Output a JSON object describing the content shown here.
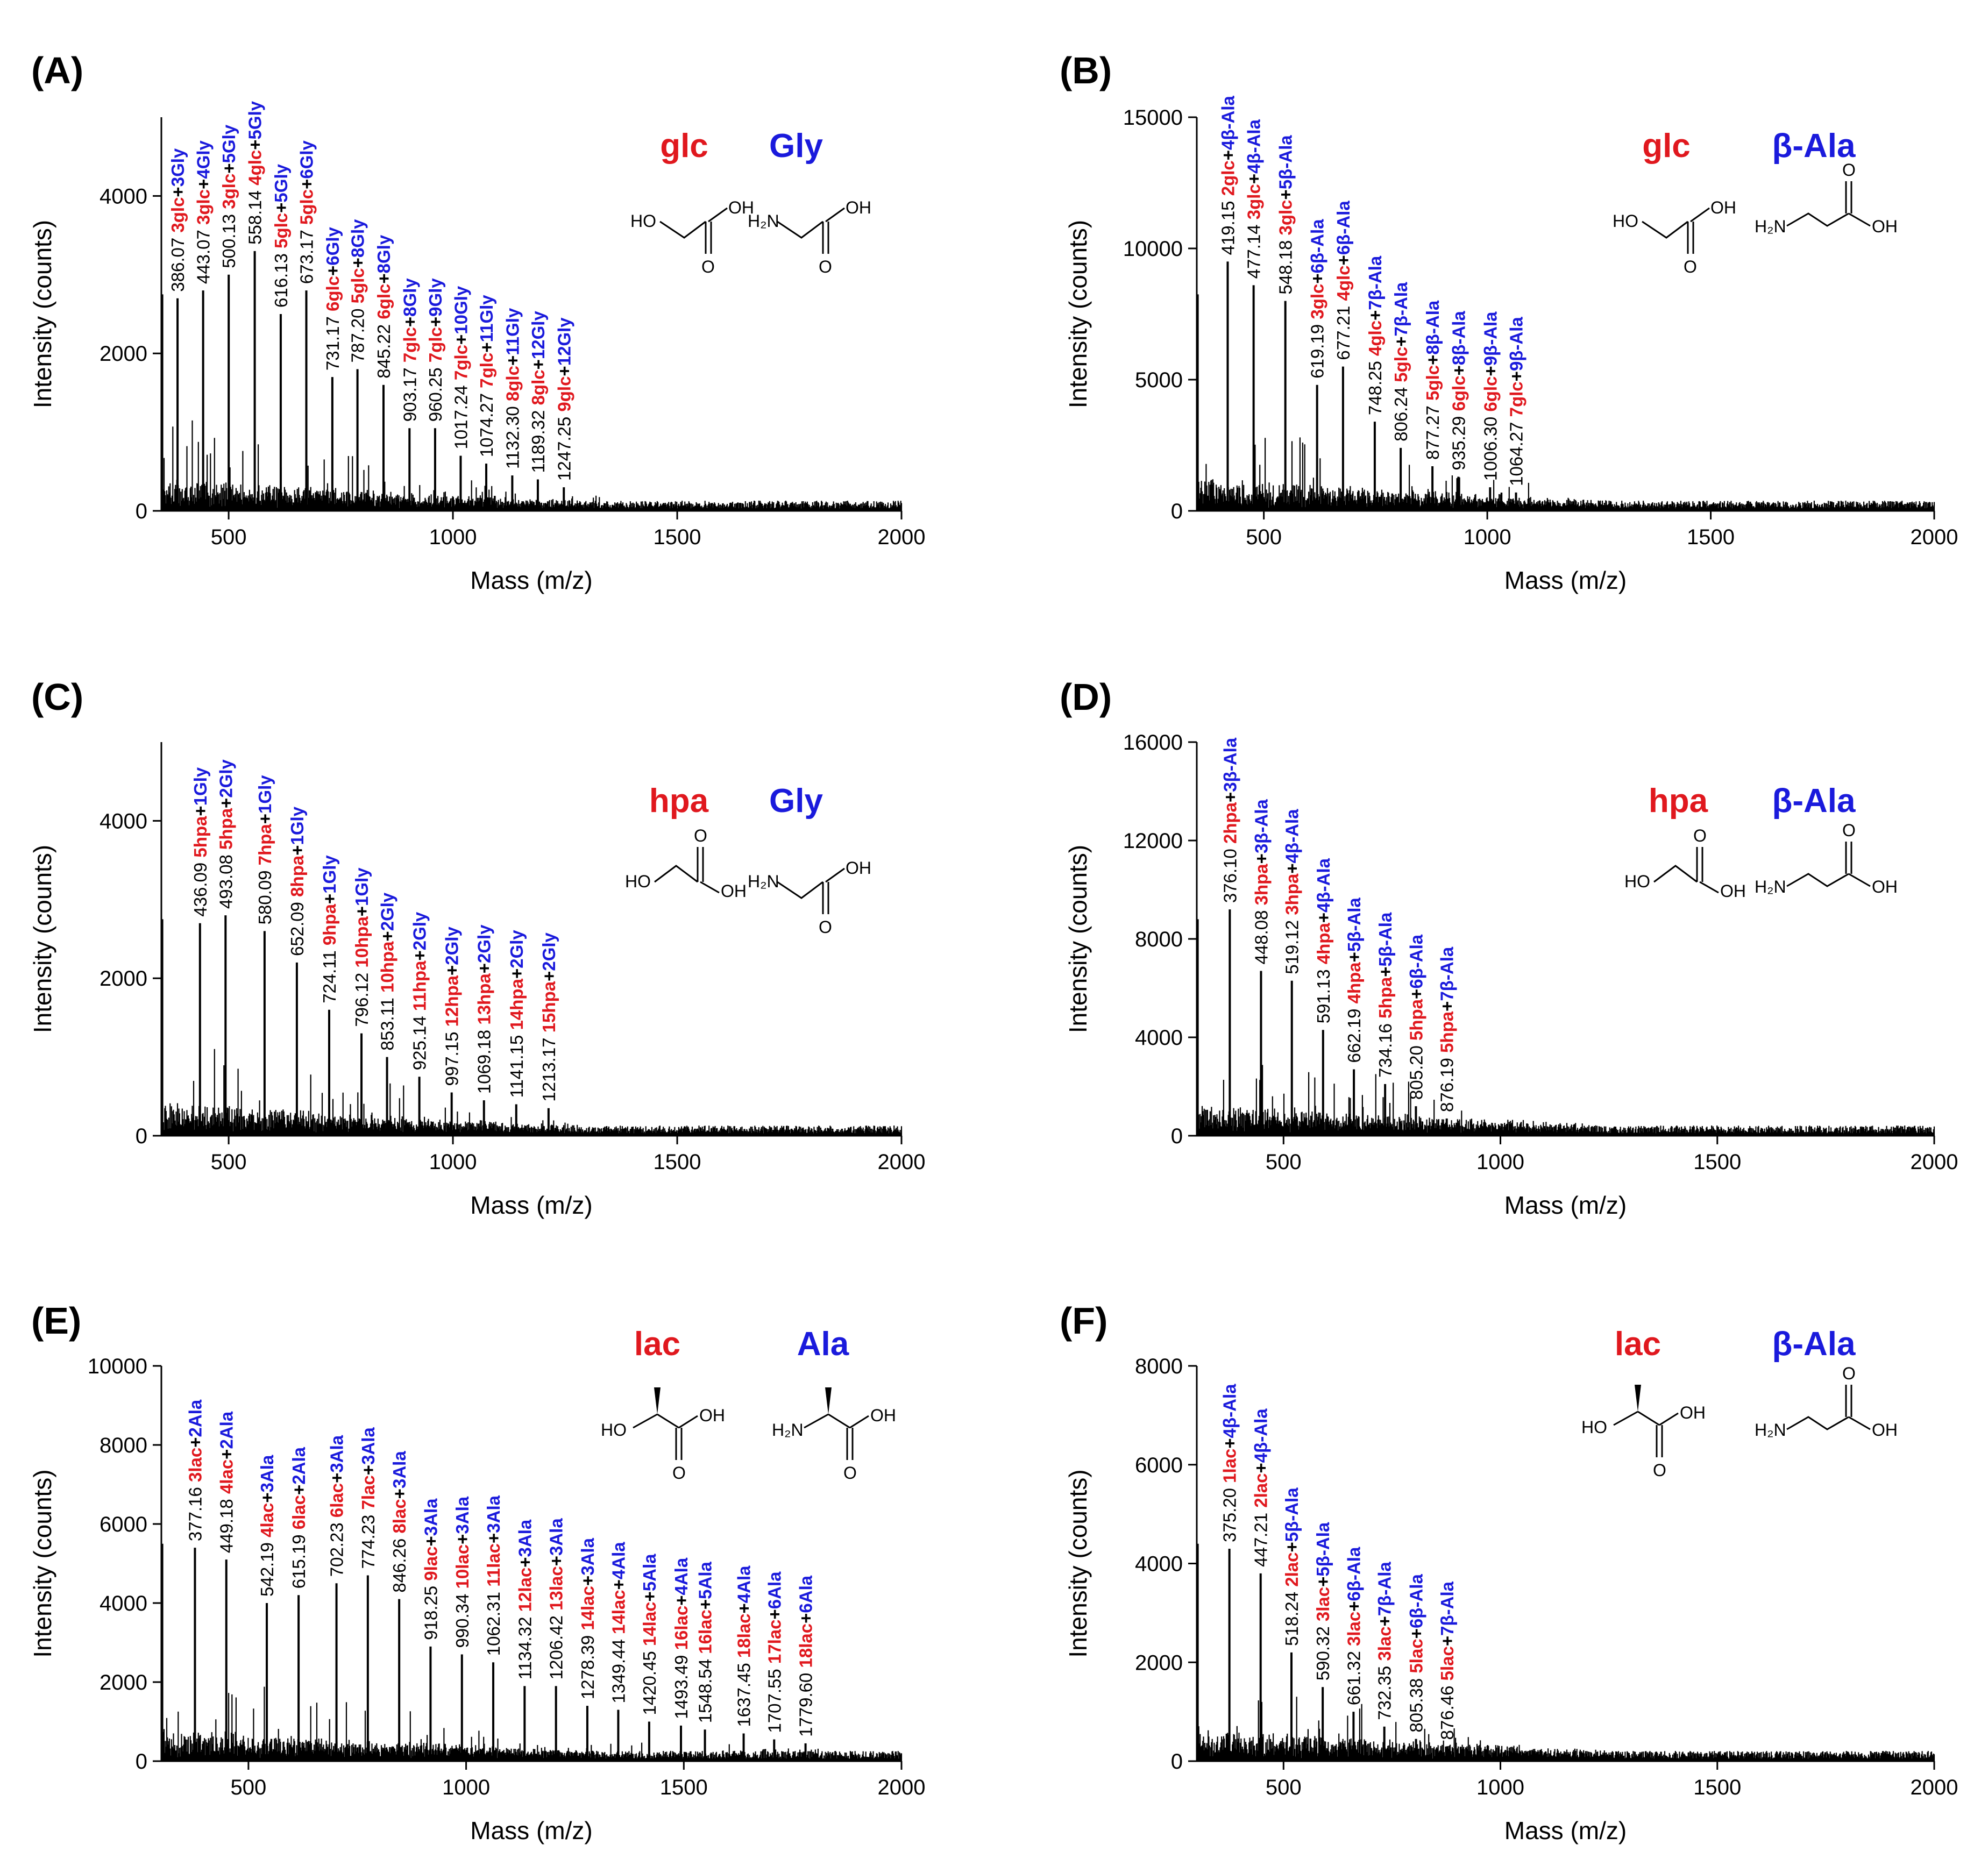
{
  "figure": {
    "colors": {
      "text": "#000000",
      "acid": "#e0181e",
      "amine": "#1a1adc"
    },
    "axis": {
      "xlabel": "Mass (m/z)",
      "ylabel": "Intensity (counts)"
    }
  },
  "chart_data": [
    {
      "panel": "(A)",
      "type": "line",
      "xlim": [
        350,
        2000
      ],
      "ylim": [
        0,
        5000
      ],
      "xticks": [
        500,
        1000,
        1500,
        2000
      ],
      "yticks": [
        0,
        2000,
        4000
      ],
      "xlabel": "Mass (m/z)",
      "ylabel": "Intensity (counts)",
      "legend": {
        "acid": "glc",
        "amine": "Gly"
      },
      "peaks": [
        {
          "mz": "386.07",
          "acid": "3glc",
          "amine": "3Gly",
          "y": 2700
        },
        {
          "mz": "443.07",
          "acid": "3glc",
          "amine": "4Gly",
          "y": 2800
        },
        {
          "mz": "500.13",
          "acid": "3glc",
          "amine": "5Gly",
          "y": 3000
        },
        {
          "mz": "558.14",
          "acid": "4glc",
          "amine": "5Gly",
          "y": 3300
        },
        {
          "mz": "616.13",
          "acid": "5glc",
          "amine": "5Gly",
          "y": 2500
        },
        {
          "mz": "673.17",
          "acid": "5glc",
          "amine": "6Gly",
          "y": 2800
        },
        {
          "mz": "731.17",
          "acid": "6glc",
          "amine": "6Gly",
          "y": 1700
        },
        {
          "mz": "787.20",
          "acid": "5glc",
          "amine": "8Gly",
          "y": 1800
        },
        {
          "mz": "845.22",
          "acid": "6glc",
          "amine": "8Gly",
          "y": 1600
        },
        {
          "mz": "903.17",
          "acid": "7glc",
          "amine": "8Gly",
          "y": 1050
        },
        {
          "mz": "960.25",
          "acid": "7glc",
          "amine": "9Gly",
          "y": 1050
        },
        {
          "mz": "1017.24",
          "acid": "7glc",
          "amine": "10Gly",
          "y": 700
        },
        {
          "mz": "1074.27",
          "acid": "7glc",
          "amine": "11Gly",
          "y": 600
        },
        {
          "mz": "1132.30",
          "acid": "8glc",
          "amine": "11Gly",
          "y": 450
        },
        {
          "mz": "1189.32",
          "acid": "8glc",
          "amine": "12Gly",
          "y": 400
        },
        {
          "mz": "1247.25",
          "acid": "9glc",
          "amine": "12Gly",
          "y": 300
        }
      ]
    },
    {
      "panel": "(B)",
      "type": "line",
      "xlim": [
        350,
        2000
      ],
      "ylim": [
        0,
        15000
      ],
      "xticks": [
        500,
        1000,
        1500,
        2000
      ],
      "yticks": [
        0,
        5000,
        10000,
        15000
      ],
      "xlabel": "Mass (m/z)",
      "ylabel": "Intensity (counts)",
      "legend": {
        "acid": "glc",
        "amine": "β-Ala"
      },
      "peaks": [
        {
          "mz": "419.15",
          "acid": "2glc",
          "amine": "4β-Ala",
          "y": 9500
        },
        {
          "mz": "477.14",
          "acid": "3glc",
          "amine": "4β-Ala",
          "y": 8600
        },
        {
          "mz": "548.18",
          "acid": "3glc",
          "amine": "5β-Ala",
          "y": 8000
        },
        {
          "mz": "619.19",
          "acid": "3glc",
          "amine": "6β-Ala",
          "y": 4800
        },
        {
          "mz": "677.21",
          "acid": "4glc",
          "amine": "6β-Ala",
          "y": 5500
        },
        {
          "mz": "748.25",
          "acid": "4glc",
          "amine": "7β-Ala",
          "y": 3400
        },
        {
          "mz": "806.24",
          "acid": "5glc",
          "amine": "7β-Ala",
          "y": 2400
        },
        {
          "mz": "877.27",
          "acid": "5glc",
          "amine": "8β-Ala",
          "y": 1700
        },
        {
          "mz": "935.29",
          "acid": "6glc",
          "amine": "8β-Ala",
          "y": 1300
        },
        {
          "mz": "1006.30",
          "acid": "6glc",
          "amine": "9β-Ala",
          "y": 900
        },
        {
          "mz": "1064.27",
          "acid": "7glc",
          "amine": "9β-Ala",
          "y": 700
        }
      ]
    },
    {
      "panel": "(C)",
      "type": "line",
      "xlim": [
        350,
        2000
      ],
      "ylim": [
        0,
        5000
      ],
      "xticks": [
        500,
        1000,
        1500,
        2000
      ],
      "yticks": [
        0,
        2000,
        4000
      ],
      "xlabel": "Mass (m/z)",
      "ylabel": "Intensity (counts)",
      "legend": {
        "acid": "hpa",
        "amine": "Gly"
      },
      "peaks": [
        {
          "mz": "436.09",
          "acid": "5hpa",
          "amine": "1Gly",
          "y": 2700
        },
        {
          "mz": "493.08",
          "acid": "5hpa",
          "amine": "2Gly",
          "y": 2800
        },
        {
          "mz": "580.09",
          "acid": "7hpa",
          "amine": "1Gly",
          "y": 2600
        },
        {
          "mz": "652.09",
          "acid": "8hpa",
          "amine": "1Gly",
          "y": 2200
        },
        {
          "mz": "724.11",
          "acid": "9hpa",
          "amine": "1Gly",
          "y": 1600
        },
        {
          "mz": "796.12",
          "acid": "10hpa",
          "amine": "1Gly",
          "y": 1300
        },
        {
          "mz": "853.11",
          "acid": "10hpa",
          "amine": "2Gly",
          "y": 1000
        },
        {
          "mz": "925.14",
          "acid": "11hpa",
          "amine": "2Gly",
          "y": 750
        },
        {
          "mz": "997.15",
          "acid": "12hpa",
          "amine": "2Gly",
          "y": 550
        },
        {
          "mz": "1069.18",
          "acid": "13hpa",
          "amine": "2Gly",
          "y": 450
        },
        {
          "mz": "1141.15",
          "acid": "14hpa",
          "amine": "2Gly",
          "y": 400
        },
        {
          "mz": "1213.17",
          "acid": "15hpa",
          "amine": "2Gly",
          "y": 350
        }
      ]
    },
    {
      "panel": "(D)",
      "type": "line",
      "xlim": [
        300,
        2000
      ],
      "ylim": [
        0,
        16000
      ],
      "xticks": [
        500,
        1000,
        1500,
        2000
      ],
      "yticks": [
        0,
        4000,
        8000,
        12000,
        16000
      ],
      "xlabel": "Mass (m/z)",
      "ylabel": "Intensity (counts)",
      "legend": {
        "acid": "hpa",
        "amine": "β-Ala"
      },
      "peaks": [
        {
          "mz": "376.10",
          "acid": "2hpa",
          "amine": "3β-Ala",
          "y": 9200
        },
        {
          "mz": "448.08",
          "acid": "3hpa",
          "amine": "3β-Ala",
          "y": 6700
        },
        {
          "mz": "519.12",
          "acid": "3hpa",
          "amine": "4β-Ala",
          "y": 6300
        },
        {
          "mz": "591.13",
          "acid": "4hpa",
          "amine": "4β-Ala",
          "y": 4300
        },
        {
          "mz": "662.19",
          "acid": "4hpa",
          "amine": "5β-Ala",
          "y": 2700
        },
        {
          "mz": "734.16",
          "acid": "5hpa",
          "amine": "5β-Ala",
          "y": 2100
        },
        {
          "mz": "805.20",
          "acid": "5hpa",
          "amine": "6β-Ala",
          "y": 1200
        },
        {
          "mz": "876.19",
          "acid": "5hpa",
          "amine": "7β-Ala",
          "y": 700
        }
      ]
    },
    {
      "panel": "(E)",
      "type": "line",
      "xlim": [
        300,
        2000
      ],
      "ylim": [
        0,
        10000
      ],
      "xticks": [
        500,
        1000,
        1500,
        2000
      ],
      "yticks": [
        0,
        2000,
        4000,
        6000,
        8000,
        10000
      ],
      "xlabel": "Mass (m/z)",
      "ylabel": "Intensity (counts)",
      "legend": {
        "acid": "lac",
        "amine": "Ala"
      },
      "peaks": [
        {
          "mz": "377.16",
          "acid": "3lac",
          "amine": "2Ala",
          "y": 5400
        },
        {
          "mz": "449.18",
          "acid": "4lac",
          "amine": "2Ala",
          "y": 5100
        },
        {
          "mz": "542.19",
          "acid": "4lac",
          "amine": "3Ala",
          "y": 4000
        },
        {
          "mz": "615.19",
          "acid": "6lac",
          "amine": "2Ala",
          "y": 4200
        },
        {
          "mz": "702.23",
          "acid": "6lac",
          "amine": "3Ala",
          "y": 4500
        },
        {
          "mz": "774.23",
          "acid": "7lac",
          "amine": "3Ala",
          "y": 4700
        },
        {
          "mz": "846.26",
          "acid": "8lac",
          "amine": "3Ala",
          "y": 4100
        },
        {
          "mz": "918.25",
          "acid": "9lac",
          "amine": "3Ala",
          "y": 2900
        },
        {
          "mz": "990.34",
          "acid": "10lac",
          "amine": "3Ala",
          "y": 2700
        },
        {
          "mz": "1062.31",
          "acid": "11lac",
          "amine": "3Ala",
          "y": 2500
        },
        {
          "mz": "1134.32",
          "acid": "12lac",
          "amine": "3Ala",
          "y": 1900
        },
        {
          "mz": "1206.42",
          "acid": "13lac",
          "amine": "3Ala",
          "y": 1900
        },
        {
          "mz": "1278.39",
          "acid": "14lac",
          "amine": "3Ala",
          "y": 1400
        },
        {
          "mz": "1349.44",
          "acid": "14lac",
          "amine": "4Ala",
          "y": 1300
        },
        {
          "mz": "1420.45",
          "acid": "14lac",
          "amine": "5Ala",
          "y": 1000
        },
        {
          "mz": "1493.49",
          "acid": "16lac",
          "amine": "4Ala",
          "y": 900
        },
        {
          "mz": "1548.54",
          "acid": "16lac",
          "amine": "5Ala",
          "y": 800
        },
        {
          "mz": "1637.45",
          "acid": "18lac",
          "amine": "4Ala",
          "y": 700
        },
        {
          "mz": "1707.55",
          "acid": "17lac",
          "amine": "6Ala",
          "y": 550
        },
        {
          "mz": "1779.60",
          "acid": "18lac",
          "amine": "6Ala",
          "y": 450
        }
      ]
    },
    {
      "panel": "(F)",
      "type": "line",
      "xlim": [
        300,
        2000
      ],
      "ylim": [
        0,
        8000
      ],
      "xticks": [
        500,
        1000,
        1500,
        2000
      ],
      "yticks": [
        0,
        2000,
        4000,
        6000,
        8000
      ],
      "xlabel": "Mass (m/z)",
      "ylabel": "Intensity (counts)",
      "legend": {
        "acid": "lac",
        "amine": "β-Ala"
      },
      "peaks": [
        {
          "mz": "375.20",
          "acid": "1lac",
          "amine": "4β-Ala",
          "y": 4300
        },
        {
          "mz": "447.21",
          "acid": "2lac",
          "amine": "4β-Ala",
          "y": 3800
        },
        {
          "mz": "518.24",
          "acid": "2lac",
          "amine": "5β-Ala",
          "y": 2200
        },
        {
          "mz": "590.32",
          "acid": "3lac",
          "amine": "5β-Ala",
          "y": 1500
        },
        {
          "mz": "661.32",
          "acid": "3lac",
          "amine": "6β-Ala",
          "y": 1000
        },
        {
          "mz": "732.35",
          "acid": "3lac",
          "amine": "7β-Ala",
          "y": 700
        },
        {
          "mz": "805.38",
          "acid": "5lac",
          "amine": "6β-Ala",
          "y": 450
        },
        {
          "mz": "876.46",
          "acid": "5lac",
          "amine": "7β-Ala",
          "y": 300
        }
      ]
    }
  ]
}
